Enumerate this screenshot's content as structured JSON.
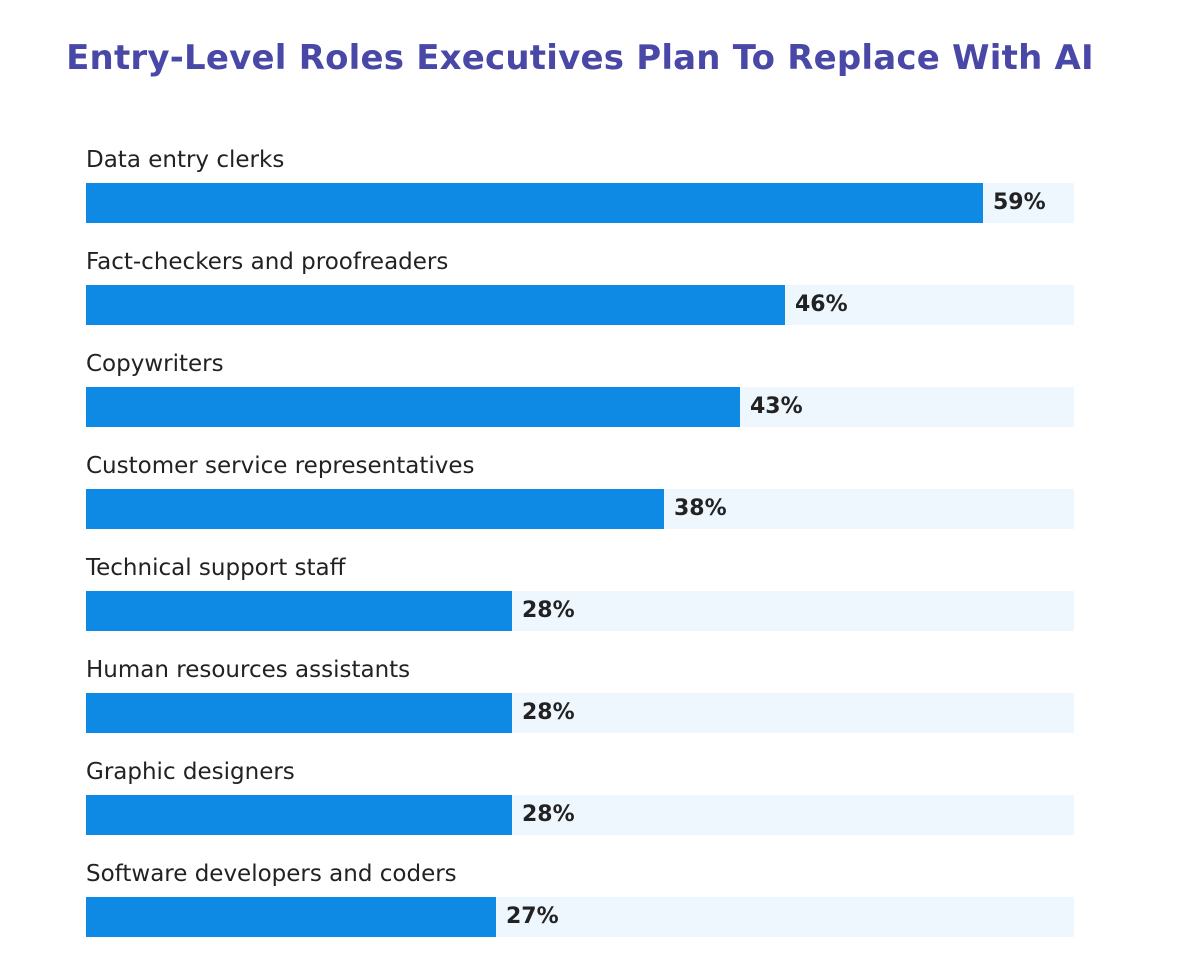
{
  "chart_data": {
    "type": "bar",
    "orientation": "horizontal",
    "title": "Entry-Level Roles Executives Plan To Replace With AI",
    "xlabel": "",
    "ylabel": "",
    "xlim": [
      0,
      65
    ],
    "grid": false,
    "categories": [
      "Data entry clerks",
      "Fact-checkers and proofreaders",
      "Copywriters",
      "Customer service representatives",
      "Technical support staff",
      "Human resources assistants",
      "Graphic designers",
      "Software developers and coders"
    ],
    "values": [
      59,
      46,
      43,
      38,
      28,
      28,
      28,
      27
    ],
    "value_labels": [
      "59%",
      "46%",
      "43%",
      "38%",
      "28%",
      "28%",
      "28%",
      "27%"
    ],
    "colors": {
      "title": "#4a48a6",
      "bar": "#0e89e4",
      "track": "#eef6fe",
      "text": "#222222"
    }
  }
}
